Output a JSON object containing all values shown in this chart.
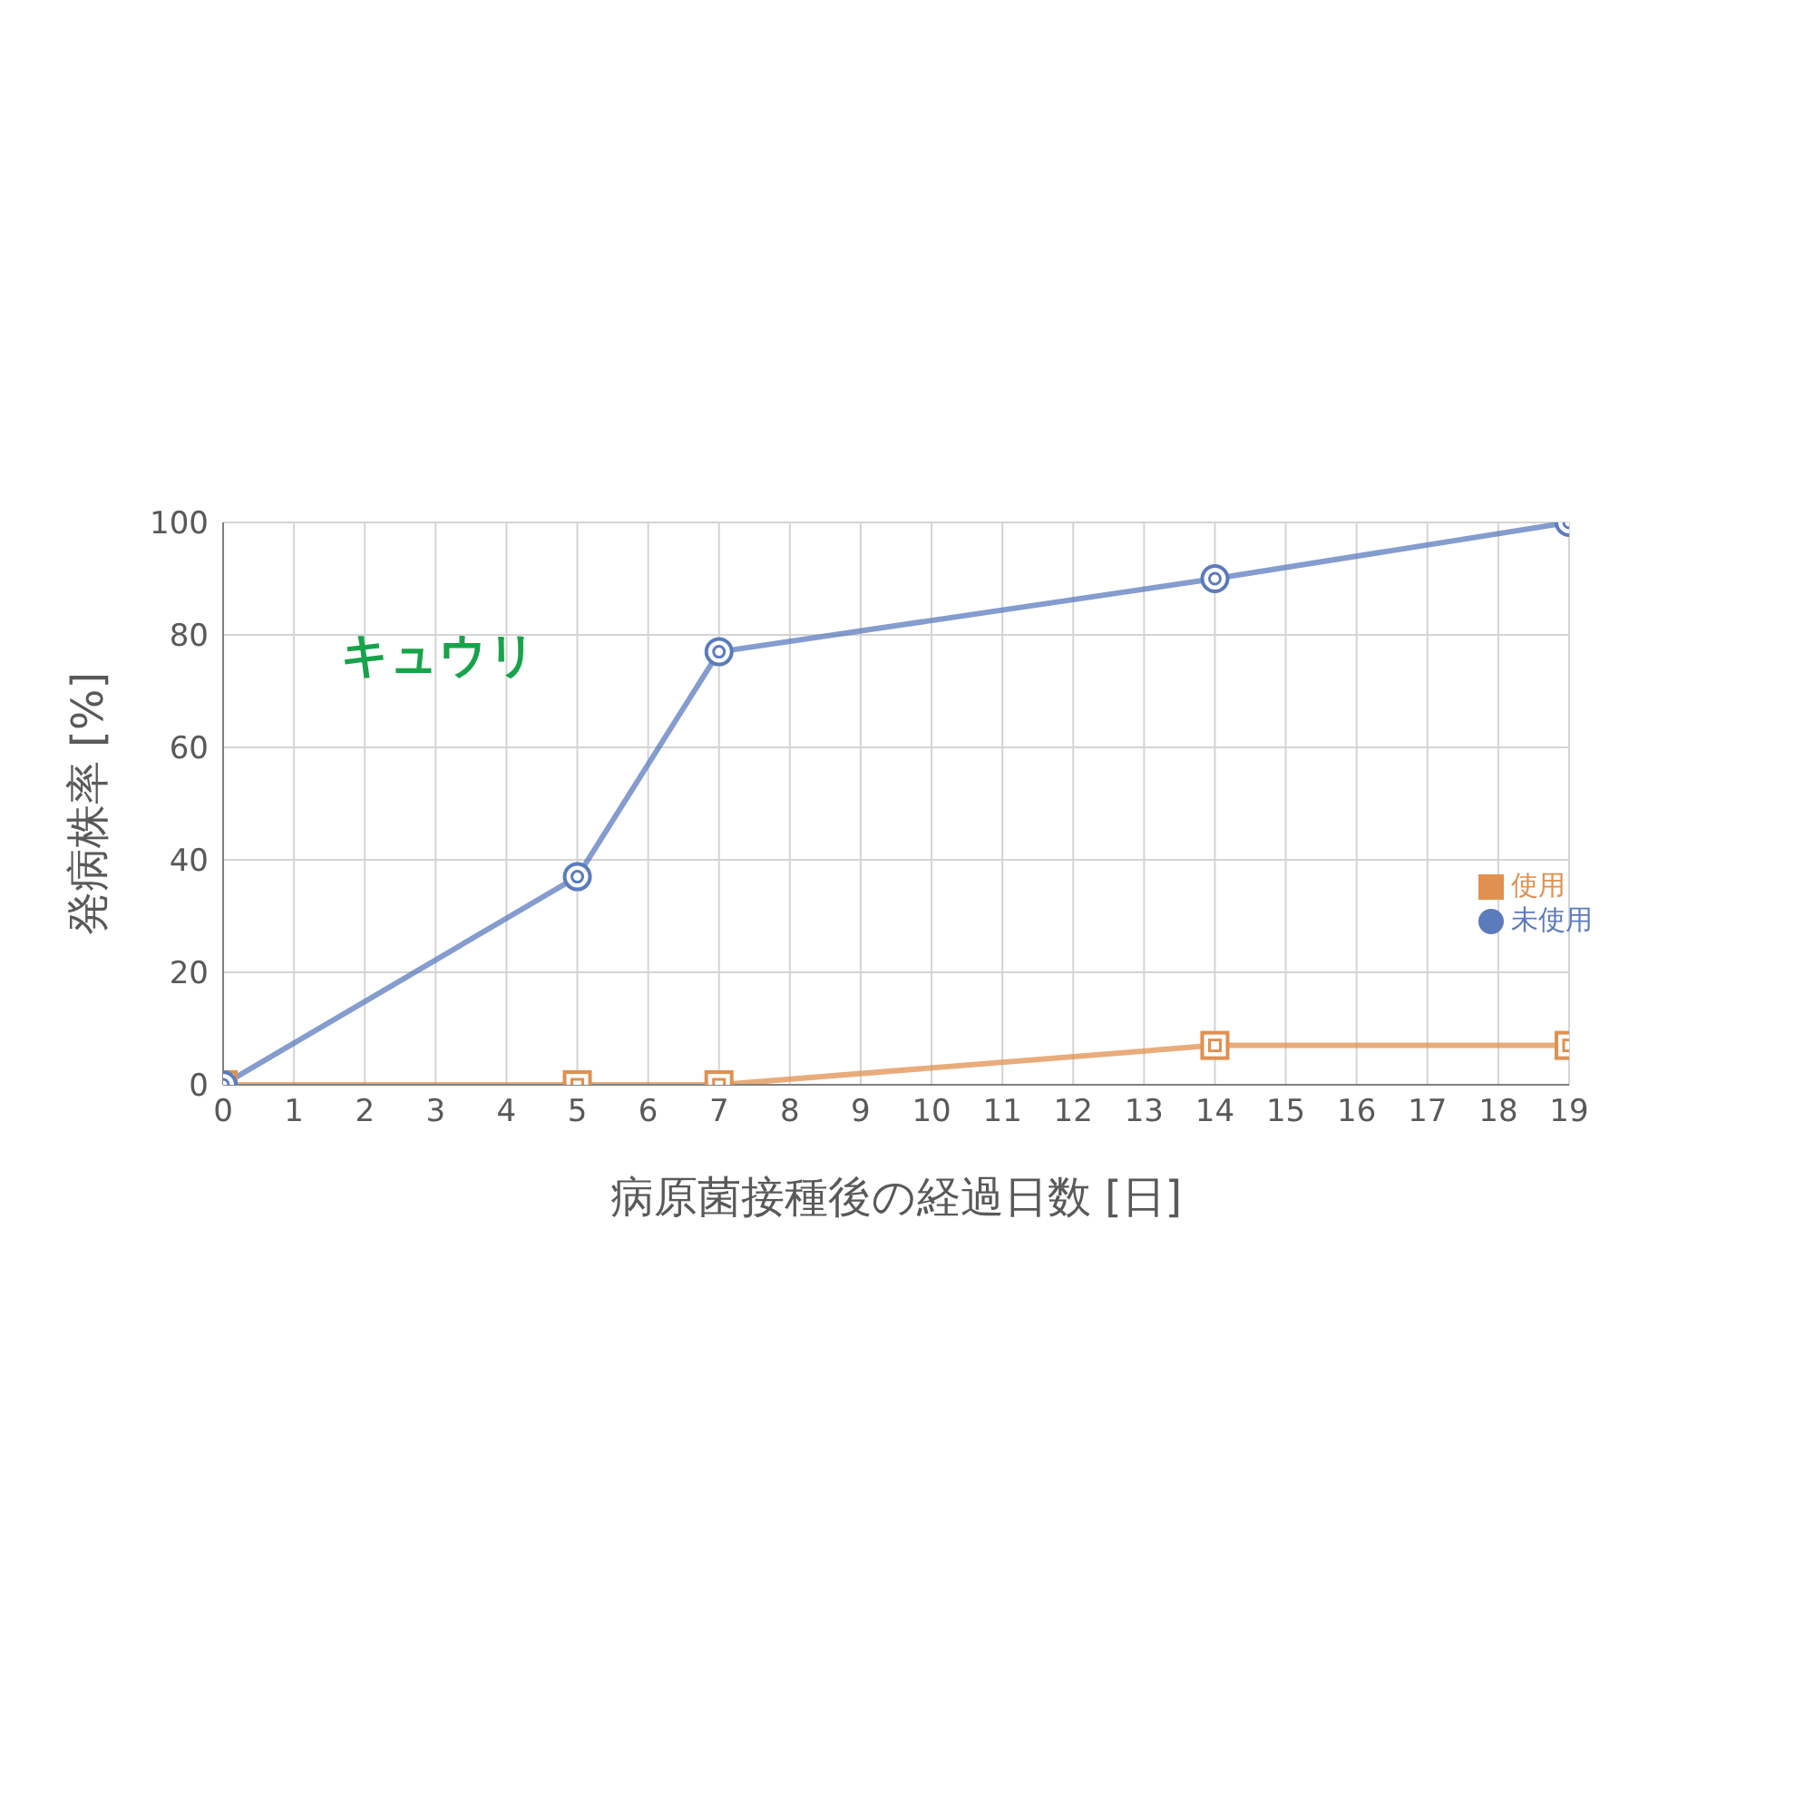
{
  "chart_data": {
    "type": "line",
    "xlabel": "病原菌接種後の経過日数 [日]",
    "ylabel": "発病株率 [%]",
    "annotations": [
      "キュウリ"
    ],
    "xlim": [
      0,
      19
    ],
    "xticks": [
      0,
      1,
      2,
      3,
      4,
      5,
      6,
      7,
      8,
      9,
      10,
      11,
      12,
      13,
      14,
      15,
      16,
      17,
      18,
      19
    ],
    "ylim": [
      0,
      100
    ],
    "yticks": [
      0,
      20,
      40,
      60,
      80,
      100
    ],
    "grid": true,
    "legend": "right",
    "series": [
      {
        "name": "使用",
        "color": "#e0904f",
        "marker": "square",
        "x": [
          0,
          5,
          7,
          14,
          19
        ],
        "values": [
          0,
          0,
          0,
          7,
          7
        ]
      },
      {
        "name": "未使用",
        "color": "#5b7bbd",
        "marker": "circle",
        "x": [
          0,
          5,
          7,
          14,
          19
        ],
        "values": [
          0,
          37,
          77,
          90,
          100
        ]
      }
    ]
  }
}
